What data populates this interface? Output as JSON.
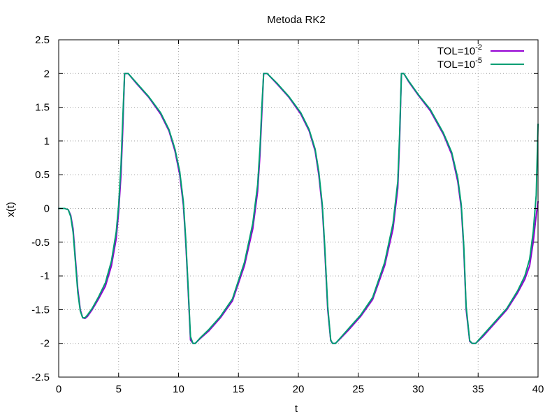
{
  "chart_data": {
    "type": "line",
    "title": "Metoda RK2",
    "xlabel": "t",
    "ylabel": "x(t)",
    "xlim": [
      0,
      40
    ],
    "ylim": [
      -2.5,
      2.5
    ],
    "grid": true,
    "legend_position": "top-right",
    "x_ticks": [
      "0",
      "5",
      "10",
      "15",
      "20",
      "25",
      "30",
      "35",
      "40"
    ],
    "y_ticks": [
      "2.5",
      "2",
      "1.5",
      "1",
      "0.5",
      "0",
      "-0.5",
      "-1",
      "-1.5",
      "-2",
      "-2.5"
    ],
    "series": [
      {
        "name": "TOL=10",
        "name_superscript": "-2",
        "color": "#9400d3",
        "x": [
          0,
          0.5,
          0.8,
          1.0,
          1.2,
          1.4,
          1.6,
          1.8,
          2.0,
          2.2,
          2.4,
          2.8,
          3.3,
          3.9,
          4.4,
          4.8,
          5.0,
          5.2,
          5.35,
          5.5,
          5.8,
          6.5,
          7.5,
          8.5,
          9.2,
          9.7,
          10.1,
          10.4,
          10.6,
          10.8,
          11.0,
          11.2,
          11.4,
          11.8,
          12.5,
          13.5,
          14.5,
          15.5,
          16.2,
          16.6,
          16.8,
          16.95,
          17.1,
          17.4,
          18.2,
          19.2,
          20.2,
          20.9,
          21.4,
          21.7,
          22.0,
          22.2,
          22.45,
          22.7,
          22.85,
          23.1,
          23.5,
          24.2,
          25.2,
          26.2,
          27.2,
          27.9,
          28.3,
          28.45,
          28.6,
          28.8,
          29.2,
          30.0,
          31.0,
          32.1,
          32.8,
          33.3,
          33.6,
          33.8,
          34.0,
          34.3,
          34.5,
          34.8,
          35.4,
          36.4,
          37.4,
          38.3,
          38.9,
          39.3,
          39.6,
          39.85,
          40.0
        ],
        "values": [
          0,
          0,
          -0.02,
          -0.1,
          -0.3,
          -0.75,
          -1.2,
          -1.5,
          -1.62,
          -1.63,
          -1.6,
          -1.5,
          -1.35,
          -1.15,
          -0.85,
          -0.45,
          -0.05,
          0.5,
          1.2,
          2.0,
          2.0,
          1.85,
          1.65,
          1.4,
          1.15,
          0.85,
          0.5,
          0.05,
          -0.5,
          -1.2,
          -1.95,
          -2.0,
          -2.0,
          -1.93,
          -1.82,
          -1.62,
          -1.37,
          -0.85,
          -0.3,
          0.25,
          0.8,
          1.4,
          2.0,
          2.0,
          1.85,
          1.65,
          1.4,
          1.15,
          0.85,
          0.5,
          0.0,
          -0.6,
          -1.5,
          -1.96,
          -2.0,
          -2.0,
          -1.93,
          -1.8,
          -1.6,
          -1.35,
          -0.85,
          -0.3,
          0.3,
          1.0,
          2.0,
          2.0,
          1.88,
          1.68,
          1.45,
          1.1,
          0.8,
          0.4,
          0.0,
          -0.6,
          -1.5,
          -1.97,
          -2.0,
          -2.0,
          -1.9,
          -1.7,
          -1.5,
          -1.25,
          -1.05,
          -0.85,
          -0.5,
          -0.1,
          0.1
        ]
      },
      {
        "name": "TOL=10",
        "name_superscript": "-5",
        "color": "#009e73",
        "x": [
          0,
          0.5,
          0.8,
          1.0,
          1.2,
          1.4,
          1.6,
          1.8,
          2.0,
          2.2,
          2.4,
          2.8,
          3.3,
          3.9,
          4.4,
          4.8,
          5.0,
          5.2,
          5.35,
          5.5,
          5.8,
          6.5,
          7.5,
          8.5,
          9.2,
          9.7,
          10.1,
          10.4,
          10.6,
          10.8,
          11.0,
          11.2,
          11.4,
          11.8,
          12.5,
          13.5,
          14.5,
          15.5,
          16.2,
          16.6,
          16.8,
          16.95,
          17.1,
          17.4,
          18.2,
          19.2,
          20.2,
          20.9,
          21.4,
          21.7,
          22.0,
          22.2,
          22.45,
          22.7,
          22.85,
          23.1,
          23.5,
          24.2,
          25.2,
          26.2,
          27.2,
          27.9,
          28.3,
          28.45,
          28.6,
          28.8,
          29.2,
          30.0,
          31.0,
          32.1,
          32.8,
          33.3,
          33.6,
          33.8,
          34.0,
          34.3,
          34.5,
          34.8,
          35.4,
          36.4,
          37.4,
          38.3,
          38.9,
          39.3,
          39.6,
          39.85,
          40.0
        ],
        "values": [
          0,
          0,
          -0.02,
          -0.12,
          -0.35,
          -0.8,
          -1.25,
          -1.52,
          -1.62,
          -1.62,
          -1.58,
          -1.48,
          -1.32,
          -1.1,
          -0.78,
          -0.35,
          0.05,
          0.65,
          1.35,
          2.0,
          2.0,
          1.86,
          1.66,
          1.42,
          1.17,
          0.88,
          0.55,
          0.1,
          -0.45,
          -1.15,
          -1.9,
          -2.0,
          -2.0,
          -1.92,
          -1.8,
          -1.6,
          -1.34,
          -0.8,
          -0.22,
          0.35,
          0.9,
          1.5,
          2.0,
          2.0,
          1.86,
          1.66,
          1.42,
          1.17,
          0.88,
          0.55,
          0.05,
          -0.55,
          -1.45,
          -1.95,
          -2.0,
          -2.0,
          -1.92,
          -1.78,
          -1.58,
          -1.32,
          -0.8,
          -0.22,
          0.4,
          1.1,
          2.0,
          2.0,
          1.89,
          1.69,
          1.47,
          1.12,
          0.83,
          0.45,
          0.05,
          -0.55,
          -1.45,
          -1.96,
          -2.0,
          -2.0,
          -1.88,
          -1.68,
          -1.48,
          -1.22,
          -1.0,
          -0.75,
          -0.35,
          0.2,
          1.25
        ]
      }
    ]
  }
}
